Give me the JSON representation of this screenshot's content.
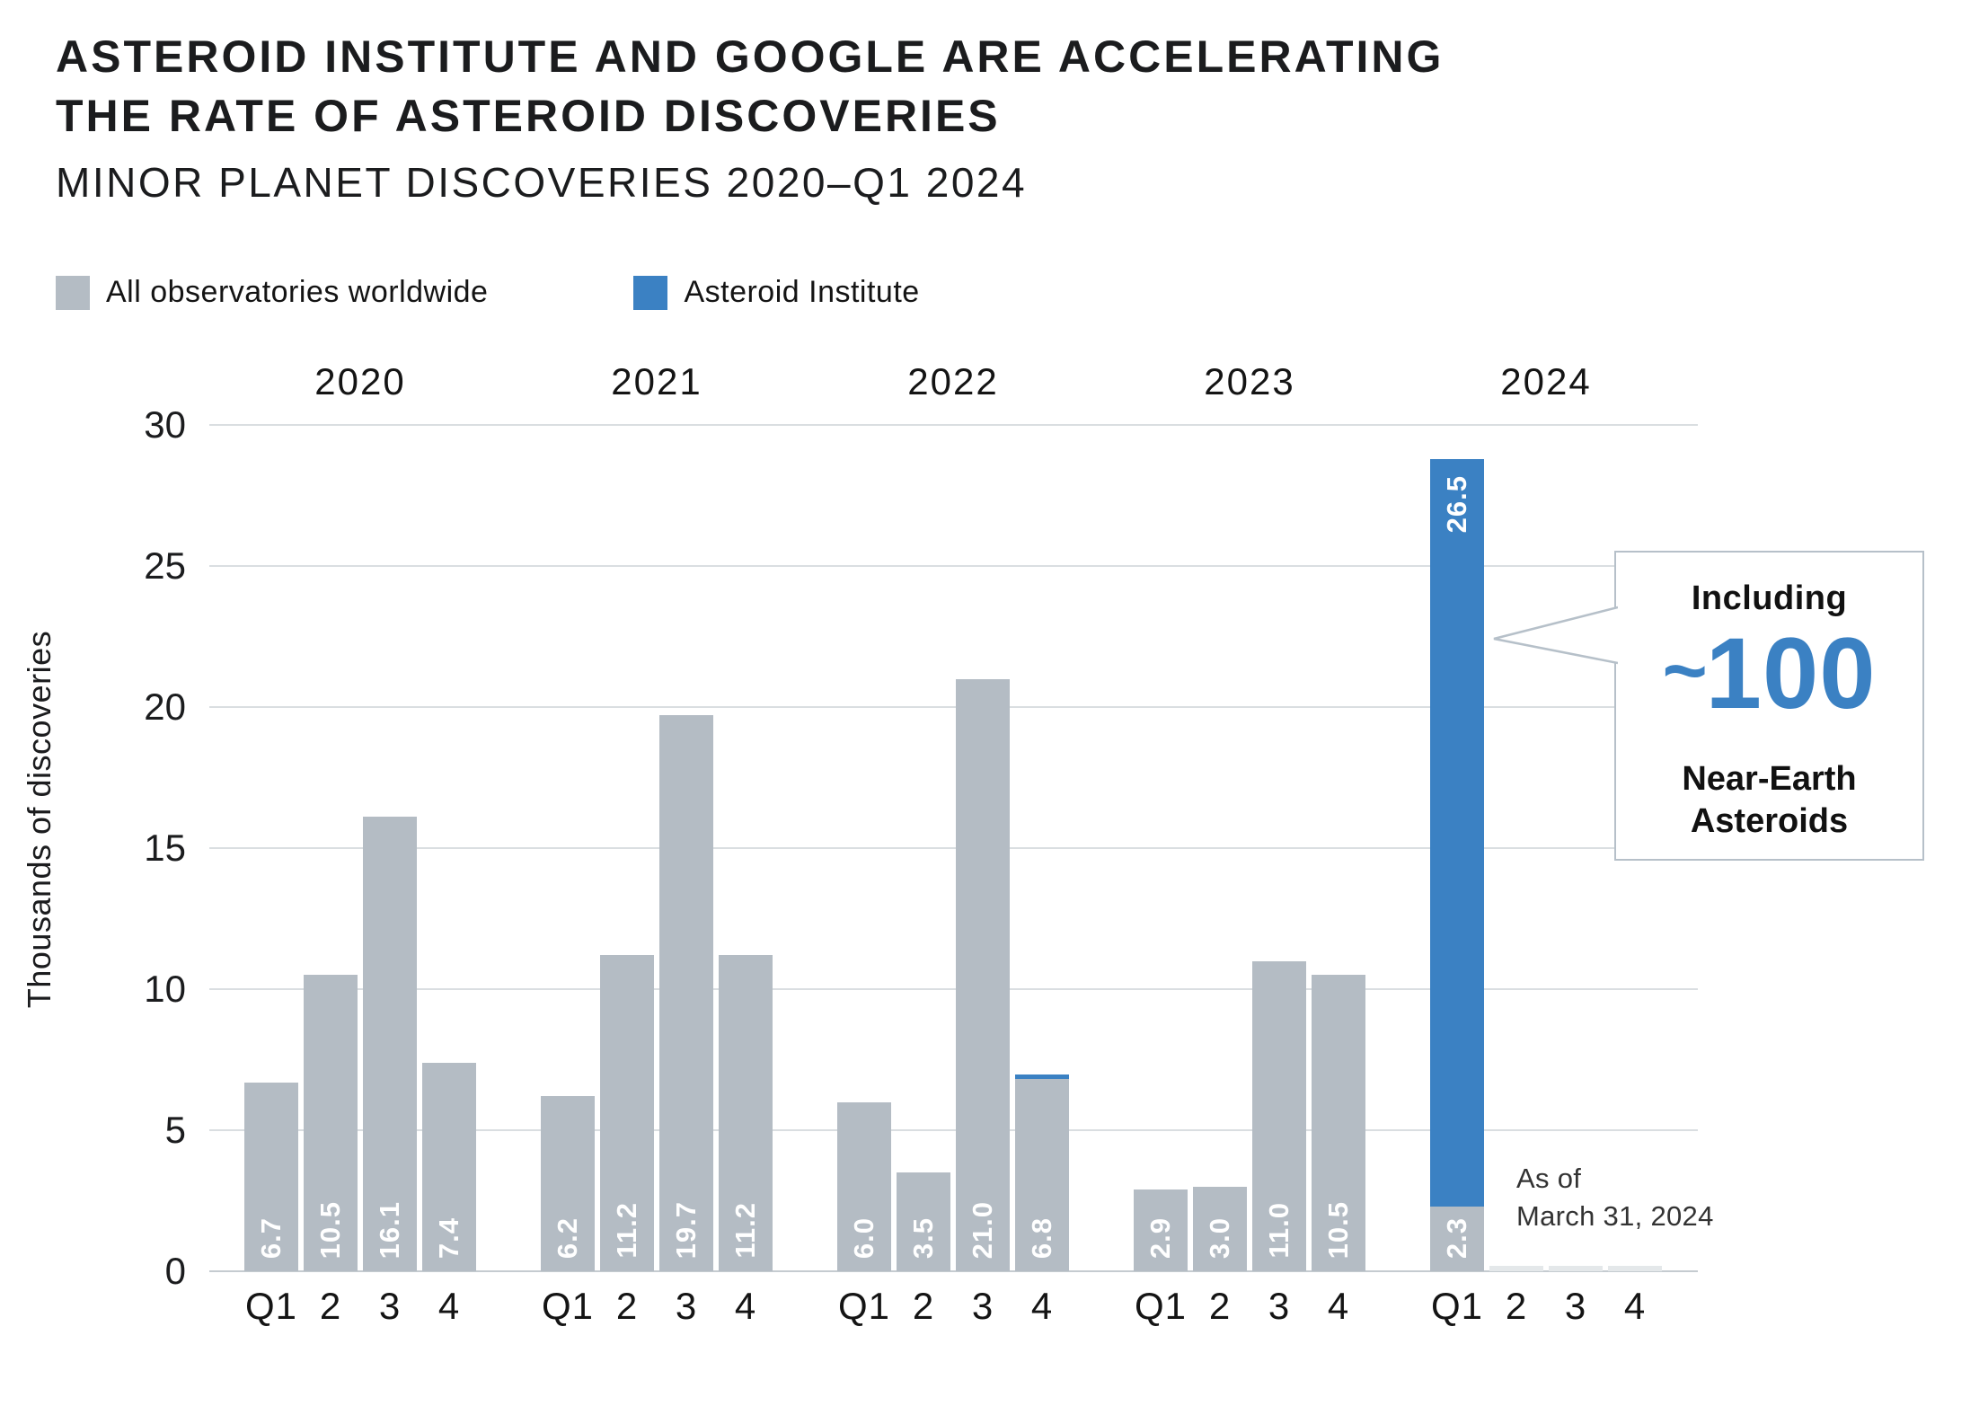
{
  "header": {
    "title_line1": "ASTEROID INSTITUTE AND GOOGLE ARE ACCELERATING",
    "title_line2": "THE RATE OF ASTEROID DISCOVERIES",
    "subtitle": "MINOR PLANET DISCOVERIES 2020–Q1 2024"
  },
  "legend": [
    {
      "label": "All observatories worldwide",
      "color_key": "worldwide"
    },
    {
      "label": "Asteroid Institute",
      "color_key": "asteroid_institute"
    }
  ],
  "colors": {
    "worldwide": "#b4bcc4",
    "asteroid_institute": "#3b81c3",
    "placeholder": "#e4e8ea",
    "grid": "#dadee1",
    "axis": "#c5cbd0",
    "accent_text": "#3b81c3"
  },
  "chart_data": {
    "type": "bar",
    "title": "MINOR PLANET DISCOVERIES 2020–Q1 2024",
    "ylabel": "Thousands of discoveries",
    "ylim": [
      0,
      30
    ],
    "yticks": [
      0,
      5,
      10,
      15,
      20,
      25,
      30
    ],
    "grid": "horizontal",
    "legend_position": "top-left",
    "series_names": [
      "All observatories worldwide",
      "Asteroid Institute"
    ],
    "groups": [
      {
        "year": "2020",
        "quarters": [
          "Q1",
          "2",
          "3",
          "4"
        ],
        "worldwide": [
          6.7,
          10.5,
          16.1,
          7.4
        ],
        "asteroid_institute": [
          0,
          0,
          0,
          0
        ],
        "bar_labels": [
          "6.7",
          "10.5",
          "16.1",
          "7.4"
        ],
        "ai_bar_labels": [
          "",
          "",
          "",
          ""
        ],
        "placeholder": [
          false,
          false,
          false,
          false
        ]
      },
      {
        "year": "2021",
        "quarters": [
          "Q1",
          "2",
          "3",
          "4"
        ],
        "worldwide": [
          6.2,
          11.2,
          19.7,
          11.2
        ],
        "asteroid_institute": [
          0,
          0,
          0,
          0
        ],
        "bar_labels": [
          "6.2",
          "11.2",
          "19.7",
          "11.2"
        ],
        "ai_bar_labels": [
          "",
          "",
          "",
          ""
        ],
        "placeholder": [
          false,
          false,
          false,
          false
        ]
      },
      {
        "year": "2022",
        "quarters": [
          "Q1",
          "2",
          "3",
          "4"
        ],
        "worldwide": [
          6.0,
          3.5,
          21.0,
          6.8
        ],
        "asteroid_institute": [
          0,
          0,
          0,
          0.15
        ],
        "bar_labels": [
          "6.0",
          "3.5",
          "21.0",
          "6.8"
        ],
        "ai_bar_labels": [
          "",
          "",
          "",
          ""
        ],
        "placeholder": [
          false,
          false,
          false,
          false
        ]
      },
      {
        "year": "2023",
        "quarters": [
          "Q1",
          "2",
          "3",
          "4"
        ],
        "worldwide": [
          2.9,
          3.0,
          11.0,
          10.5
        ],
        "asteroid_institute": [
          0,
          0,
          0,
          0
        ],
        "bar_labels": [
          "2.9",
          "3.0",
          "11.0",
          "10.5"
        ],
        "ai_bar_labels": [
          "",
          "",
          "",
          ""
        ],
        "placeholder": [
          false,
          false,
          false,
          false
        ]
      },
      {
        "year": "2024",
        "quarters": [
          "Q1",
          "2",
          "3",
          "4"
        ],
        "worldwide": [
          2.3,
          0.2,
          0.2,
          0.2
        ],
        "asteroid_institute": [
          26.5,
          0,
          0,
          0
        ],
        "bar_labels": [
          "2.3",
          "",
          "",
          ""
        ],
        "ai_bar_labels": [
          "26.5",
          "",
          "",
          ""
        ],
        "placeholder": [
          false,
          true,
          true,
          true
        ]
      }
    ]
  },
  "callout": {
    "line1": "Including",
    "approx": "~",
    "big_number": "100",
    "line2": "Near-Earth",
    "line3": "Asteroids"
  },
  "note": {
    "line1": "As of",
    "line2": "March 31, 2024"
  }
}
